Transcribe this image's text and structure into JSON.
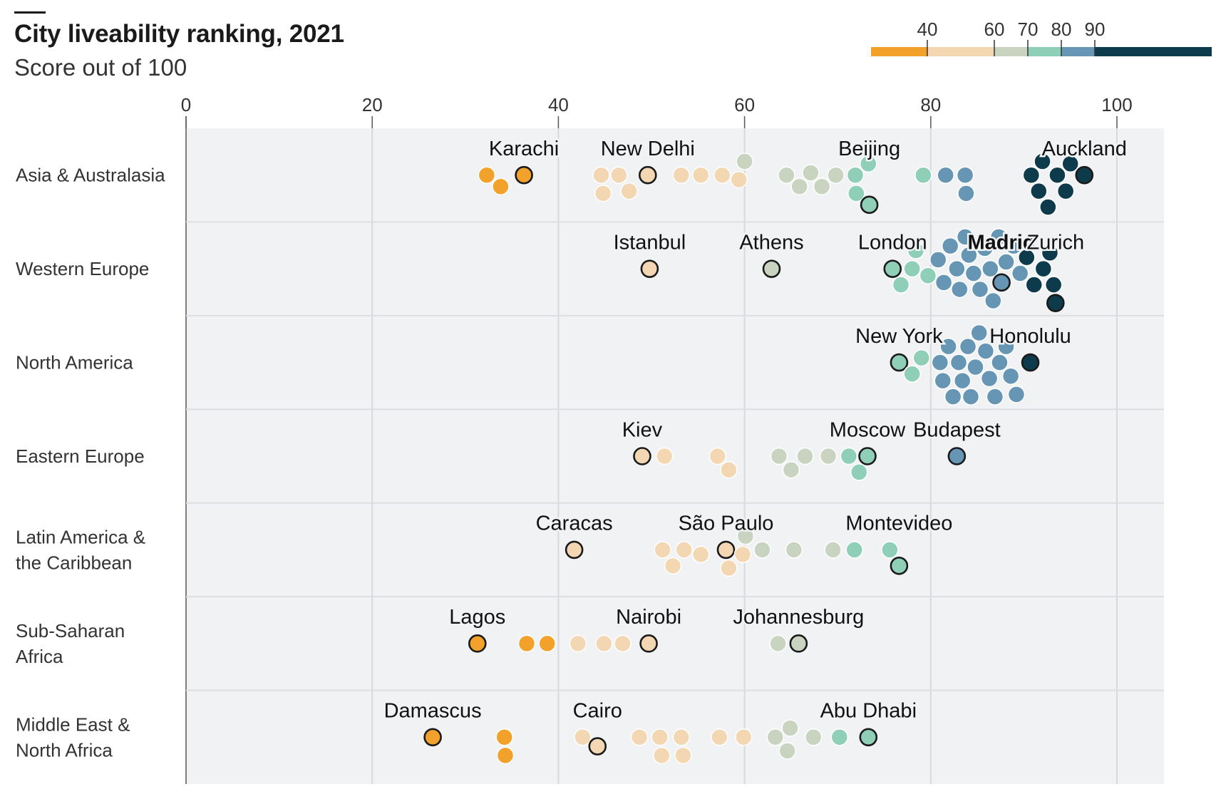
{
  "title": "City liveability ranking, 2021",
  "subtitle": "Score out of 100",
  "legend": {
    "ticks": [
      "40",
      "60",
      "70",
      "80",
      "90"
    ],
    "bins": [
      {
        "min": 0,
        "max": 40,
        "color": "#f2a12a"
      },
      {
        "min": 40,
        "max": 60,
        "color": "#f3d7b3"
      },
      {
        "min": 60,
        "max": 70,
        "color": "#c9d4c0"
      },
      {
        "min": 70,
        "max": 80,
        "color": "#8fcfb8"
      },
      {
        "min": 80,
        "max": 90,
        "color": "#6796b4"
      },
      {
        "min": 90,
        "max": 100,
        "color": "#0d3b4c"
      }
    ]
  },
  "chart_data": {
    "type": "scatter",
    "title": "City liveability ranking, 2021",
    "subtitle": "Score out of 100",
    "xlim": [
      0,
      100
    ],
    "x_ticks": [
      0,
      20,
      40,
      60,
      80,
      100
    ],
    "grid": true,
    "rows": [
      {
        "region": [
          "Asia & Australasia"
        ],
        "scores": [
          32.3,
          33.8,
          36.3,
          44.6,
          44.8,
          46.5,
          47.6,
          49.6,
          53.2,
          55.3,
          57.6,
          59.4,
          60.0,
          64.5,
          65.9,
          67.1,
          68.3,
          69.8,
          71.9,
          72.0,
          73.3,
          73.4,
          79.2,
          81.6,
          83.7,
          83.8,
          90.8,
          91.6,
          92.0,
          92.6,
          93.6,
          94.5,
          95.0,
          96.5
        ],
        "labeled": [
          {
            "city": "Karachi",
            "score": 36.3
          },
          {
            "city": "New Delhi",
            "score": 49.6
          },
          {
            "city": "Beijing",
            "score": 73.4
          },
          {
            "city": "Auckland",
            "score": 96.5
          }
        ]
      },
      {
        "region": [
          "Western Europe"
        ],
        "scores": [
          49.8,
          62.9,
          75.9,
          76.8,
          78.0,
          78.4,
          79.7,
          80.8,
          81.4,
          82.1,
          82.8,
          83.1,
          83.7,
          84.1,
          84.6,
          85.3,
          85.8,
          86.4,
          86.7,
          87.3,
          87.6,
          88.1,
          88.9,
          89.6,
          90.3,
          91.1,
          92.1,
          92.8,
          93.2,
          93.4
        ],
        "labeled": [
          {
            "city": "Istanbul",
            "score": 49.8
          },
          {
            "city": "Athens",
            "score": 62.9
          },
          {
            "city": "London",
            "score": 75.9
          },
          {
            "city": "Madrid",
            "score": 87.6
          },
          {
            "city": "Zurich",
            "score": 93.4
          }
        ]
      },
      {
        "region": [
          "North America"
        ],
        "scores": [
          76.6,
          78.0,
          79.0,
          81.0,
          81.3,
          81.9,
          82.4,
          83.0,
          83.4,
          84.0,
          84.3,
          84.8,
          85.2,
          85.9,
          86.3,
          86.9,
          87.4,
          88.1,
          88.6,
          89.2,
          90.7
        ],
        "labeled": [
          {
            "city": "New York",
            "score": 76.6
          },
          {
            "city": "Honolulu",
            "score": 90.7
          }
        ]
      },
      {
        "region": [
          "Eastern Europe"
        ],
        "scores": [
          49.0,
          51.4,
          57.1,
          58.3,
          63.7,
          65.0,
          66.5,
          69.0,
          71.2,
          72.3,
          73.2,
          82.8
        ],
        "labeled": [
          {
            "city": "Kiev",
            "score": 49.0
          },
          {
            "city": "Moscow",
            "score": 73.2
          },
          {
            "city": "Budapest",
            "score": 82.8
          }
        ]
      },
      {
        "region": [
          "Latin America &",
          "the Caribbean"
        ],
        "scores": [
          41.7,
          51.2,
          52.3,
          53.5,
          55.3,
          58.0,
          58.3,
          59.8,
          60.1,
          61.9,
          65.3,
          69.5,
          71.8,
          75.6,
          76.6
        ],
        "labeled": [
          {
            "city": "Caracas",
            "score": 41.7
          },
          {
            "city": "São Paulo",
            "score": 58.0
          },
          {
            "city": "Montevideo",
            "score": 76.6
          }
        ]
      },
      {
        "region": [
          "Sub-Saharan",
          "Africa"
        ],
        "scores": [
          31.3,
          36.6,
          38.8,
          42.1,
          44.9,
          46.9,
          49.7,
          63.6,
          65.8
        ],
        "labeled": [
          {
            "city": "Lagos",
            "score": 31.3
          },
          {
            "city": "Nairobi",
            "score": 49.7
          },
          {
            "city": "Johannesburg",
            "score": 65.8
          }
        ]
      },
      {
        "region": [
          "Middle East &",
          "North Africa"
        ],
        "scores": [
          26.5,
          34.2,
          34.3,
          42.6,
          44.2,
          48.7,
          50.9,
          51.1,
          53.2,
          53.4,
          57.3,
          59.9,
          63.3,
          64.6,
          64.9,
          67.4,
          70.2,
          73.3
        ],
        "labeled": [
          {
            "city": "Damascus",
            "score": 26.5
          },
          {
            "city": "Cairo",
            "score": 44.2
          },
          {
            "city": "Abu Dhabi",
            "score": 73.3
          }
        ]
      }
    ]
  }
}
